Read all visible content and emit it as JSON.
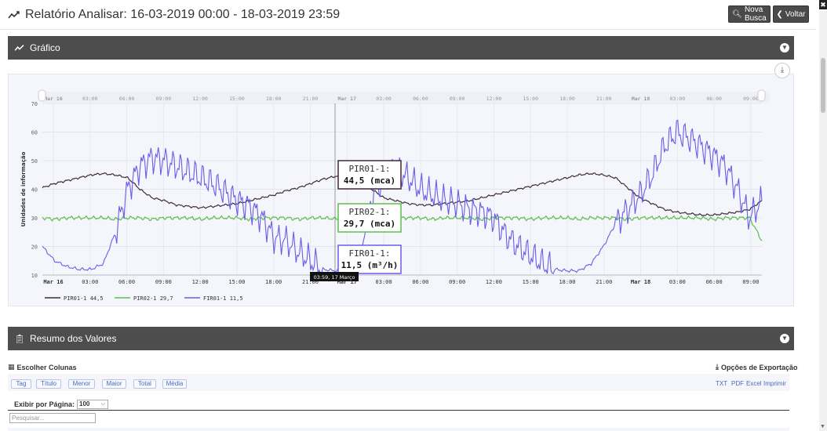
{
  "header": {
    "title": "Relatório Analisar: 16-03-2019 00:00 - 18-03-2019 23:59",
    "btn_nova": "Nova Busca",
    "btn_voltar": "Voltar"
  },
  "panels": {
    "grafico": "Gráfico",
    "resumo": "Resumo dos Valores"
  },
  "chart_data": {
    "type": "line",
    "ylabel": "Unidades de informação",
    "ylim": [
      10,
      70
    ],
    "yticks": [
      10,
      20,
      30,
      40,
      50,
      60,
      70
    ],
    "xticks": [
      "Mar 16",
      "03:00",
      "06:00",
      "09:00",
      "12:00",
      "15:00",
      "18:00",
      "21:00",
      "Mar 17",
      "03:00",
      "06:00",
      "09:00",
      "12:00",
      "15:00",
      "18:00",
      "21:00",
      "Mar 18",
      "03:00",
      "06:00",
      "09:00"
    ],
    "navigator_ticks": [
      "Mar 16",
      "03:00",
      "06:00",
      "09:00",
      "12:00",
      "15:00",
      "18:00",
      "21:00",
      "Mar 17",
      "03:00",
      "06:00",
      "09:00",
      "12:00",
      "15:00",
      "18:00",
      "21:00",
      "Mar 18",
      "03:00",
      "06:00",
      "09:00"
    ],
    "x_hours": [
      0,
      1,
      2,
      3,
      4,
      5,
      6,
      7,
      8,
      9,
      10,
      11,
      12,
      13,
      14,
      15,
      16,
      17,
      18,
      19,
      20,
      21,
      22,
      23,
      24,
      25,
      26,
      27,
      28,
      29,
      30,
      31,
      32,
      33,
      34,
      35,
      36,
      37,
      38,
      39,
      40,
      41,
      42,
      43,
      44,
      45,
      46,
      47,
      48,
      49,
      50,
      51,
      52,
      53,
      54,
      55,
      56,
      57,
      58,
      59
    ],
    "series": [
      {
        "name": "PIR01-1",
        "color": "#3f2a3a",
        "values": [
          40.5,
          42,
          43,
          44,
          45,
          45.5,
          45,
          44,
          40,
          37,
          36,
          34.5,
          34,
          33.5,
          34,
          34.5,
          35,
          36,
          37,
          38,
          39.5,
          40.5,
          42,
          43.5,
          44.5,
          44.5,
          43,
          40,
          37,
          36,
          35,
          34.5,
          34.5,
          35,
          35.5,
          36,
          37,
          38,
          39,
          40,
          41,
          42,
          43,
          44,
          45,
          45.5,
          45,
          44,
          40.5,
          37,
          35,
          33,
          32,
          31.5,
          31,
          31,
          31.5,
          32,
          33,
          36
        ]
      },
      {
        "name": "PIR02-1",
        "color": "#5cbf4a",
        "values": [
          30,
          29.5,
          30,
          30,
          30,
          30,
          29.5,
          30,
          30,
          29.5,
          30,
          30,
          30,
          29.5,
          30,
          30,
          30,
          29.5,
          30,
          30,
          30,
          29.5,
          30,
          30,
          29.7,
          29.7,
          30,
          30,
          29.5,
          30,
          30,
          30,
          29.5,
          30,
          30,
          30,
          29.5,
          30,
          30,
          30,
          29.5,
          30,
          30,
          30,
          29.5,
          30,
          30,
          30,
          29.5,
          30,
          30,
          30,
          30,
          30,
          30,
          29.5,
          30,
          30,
          30,
          22
        ]
      },
      {
        "name": "FIR01-1",
        "color": "#6b5ce8",
        "values": [
          20,
          15,
          13,
          12,
          12,
          14,
          25,
          40,
          48,
          51,
          50,
          48,
          46,
          44,
          42,
          39,
          36,
          34,
          30,
          23,
          22,
          18,
          15,
          12,
          11.5,
          11.5,
          14,
          38,
          44,
          47,
          44,
          40,
          38,
          36,
          35,
          33,
          32,
          30,
          24,
          20,
          17,
          14,
          12,
          11.5,
          11.5,
          14,
          20,
          28,
          33,
          38,
          45,
          55,
          60,
          58,
          55,
          52,
          48,
          40,
          30,
          36
        ]
      }
    ],
    "tooltip": {
      "time": "03:59, 17 Março",
      "items": [
        {
          "name": "PIR01-1:",
          "value": "44,5 (mca)"
        },
        {
          "name": "PIR02-1:",
          "value": "29,7 (mca)"
        },
        {
          "name": "FIR01-1:",
          "value": "11,5 (m³/h)"
        }
      ]
    },
    "legend": [
      {
        "label": "PIR01-1 44,5",
        "color": "#3f2a3a"
      },
      {
        "label": "PIR02-1 29,7",
        "color": "#5cbf4a"
      },
      {
        "label": "FIR01-1 11,5",
        "color": "#6b5ce8"
      }
    ],
    "grid": true,
    "legend_position": "bottom-left"
  },
  "resumo": {
    "choose_columns": "Escolher Colunas",
    "export_options": "Opções de Exportação",
    "columns": [
      "Tag",
      "Título",
      "Menor",
      "Maior",
      "Total",
      "Média"
    ],
    "exports": [
      "TXT",
      "PDF",
      "Excel",
      "Imprimir"
    ],
    "per_page_label": "Exibir por Página:",
    "per_page_value": "100",
    "search_placeholder": "Pesquisar..."
  }
}
